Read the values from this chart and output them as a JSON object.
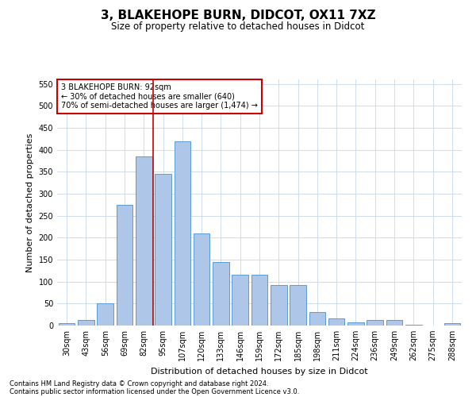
{
  "title": "3, BLAKEHOPE BURN, DIDCOT, OX11 7XZ",
  "subtitle": "Size of property relative to detached houses in Didcot",
  "xlabel": "Distribution of detached houses by size in Didcot",
  "ylabel": "Number of detached properties",
  "categories": [
    "30sqm",
    "43sqm",
    "56sqm",
    "69sqm",
    "82sqm",
    "95sqm",
    "107sqm",
    "120sqm",
    "133sqm",
    "146sqm",
    "159sqm",
    "172sqm",
    "185sqm",
    "198sqm",
    "211sqm",
    "224sqm",
    "236sqm",
    "249sqm",
    "262sqm",
    "275sqm",
    "288sqm"
  ],
  "values": [
    5,
    12,
    50,
    275,
    385,
    345,
    420,
    210,
    145,
    115,
    115,
    92,
    92,
    30,
    17,
    8,
    12,
    12,
    2,
    0,
    5
  ],
  "bar_color": "#aec6e8",
  "bar_edge_color": "#5b9bd5",
  "annotation_text": "3 BLAKEHOPE BURN: 92sqm\n← 30% of detached houses are smaller (640)\n70% of semi-detached houses are larger (1,474) →",
  "annotation_box_color": "#ffffff",
  "annotation_box_edge_color": "#cc0000",
  "line_color": "#cc0000",
  "footnote1": "Contains HM Land Registry data © Crown copyright and database right 2024.",
  "footnote2": "Contains public sector information licensed under the Open Government Licence v3.0.",
  "bg_color": "#ffffff",
  "grid_color": "#c8d8e8",
  "yticks": [
    0,
    50,
    100,
    150,
    200,
    250,
    300,
    350,
    400,
    450,
    500,
    550
  ],
  "ylim": [
    0,
    560
  ],
  "title_fontsize": 11,
  "subtitle_fontsize": 8.5,
  "xlabel_fontsize": 8,
  "ylabel_fontsize": 8,
  "tick_fontsize": 7,
  "annotation_fontsize": 7,
  "footnote_fontsize": 6
}
